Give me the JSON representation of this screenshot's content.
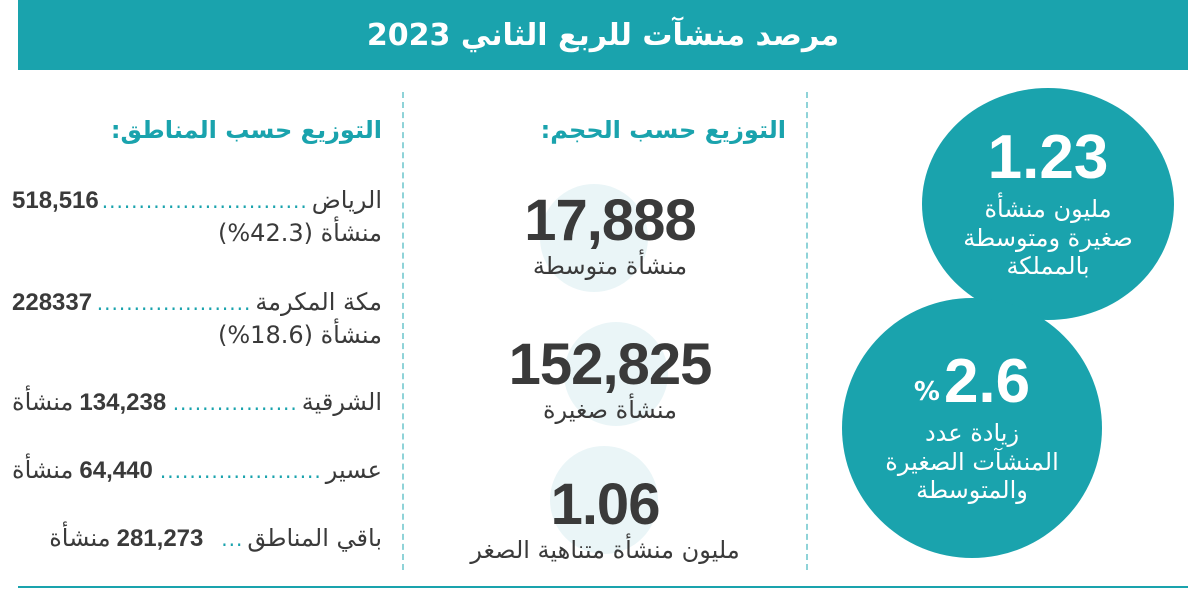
{
  "header": {
    "title": "مرصد منشآت للربع الثاني 2023"
  },
  "stats": {
    "total": {
      "value": "1.23",
      "text": "مليون منشأة\nصغيرة ومتوسطة\nبالمملكة"
    },
    "growth": {
      "value": "2.6",
      "percent": "%",
      "text": "زيادة عدد\nالمنشآت الصغيرة\nوالمتوسطة"
    }
  },
  "size_distribution": {
    "heading": "التوزيع حسب الحجم:",
    "items": [
      {
        "value": "17,888",
        "label": "منشأة متوسطة"
      },
      {
        "value": "152,825",
        "label": "منشأة صغيرة"
      },
      {
        "value": "1.06",
        "label": "مليون منشأة متناهية الصغر"
      }
    ]
  },
  "region_distribution": {
    "heading": "التوزيع حسب المناطق:",
    "items": [
      {
        "name": "الرياض",
        "count": "518,516",
        "unit": "",
        "sub": "منشأة (42.3%)"
      },
      {
        "name": "مكة المكرمة",
        "count": "228337",
        "unit": "",
        "sub": "منشأة (18.6%)"
      },
      {
        "name": "الشرقية",
        "count": "134,238",
        "unit": "منشأة",
        "sub": ""
      },
      {
        "name": "عسير",
        "count": "64,440",
        "unit": "منشأة",
        "sub": ""
      },
      {
        "name": "باقي المناطق",
        "count": "281,273",
        "unit": "منشأة",
        "sub": ""
      }
    ]
  },
  "colors": {
    "accent": "#1aa3ad",
    "text": "#3a3a3a",
    "bubble": "#eaf5f7"
  }
}
